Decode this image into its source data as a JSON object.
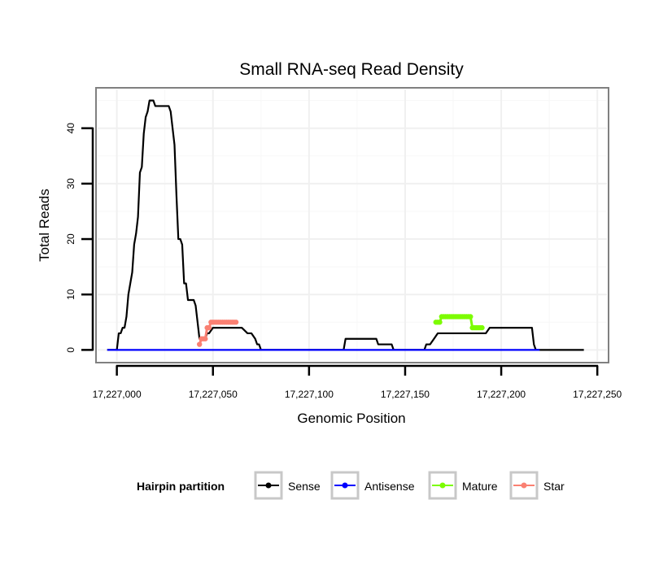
{
  "chart_data": {
    "type": "line",
    "title": "Small RNA-seq Read Density",
    "xlabel": "Genomic Position",
    "ylabel": "Total Reads",
    "xlim": [
      17226990,
      17227255
    ],
    "ylim": [
      -2,
      47
    ],
    "x_ticks": [
      17227000,
      17227050,
      17227100,
      17227150,
      17227200,
      17227250
    ],
    "x_tick_labels": [
      "17,227,000",
      "17,227,050",
      "17,227,100",
      "17,227,150",
      "17,227,200",
      "17,227,250"
    ],
    "y_ticks": [
      0,
      10,
      20,
      30,
      40
    ],
    "y_tick_labels": [
      "0",
      "10",
      "20",
      "30",
      "40"
    ],
    "grid": true,
    "legend": {
      "title": "Hairpin partition",
      "placement": "bottom",
      "entries": [
        {
          "name": "Sense",
          "color": "#000000"
        },
        {
          "name": "Antisense",
          "color": "#0000ff"
        },
        {
          "name": "Mature",
          "color": "#7cfc00"
        },
        {
          "name": "Star",
          "color": "#fa8072"
        }
      ]
    },
    "series": [
      {
        "name": "Sense",
        "color": "#000000",
        "style": "line",
        "x": [
          17226995,
          17227000,
          17227001,
          17227002,
          17227003,
          17227004,
          17227005,
          17227006,
          17227007,
          17227008,
          17227009,
          17227010,
          17227011,
          17227012,
          17227013,
          17227014,
          17227015,
          17227016,
          17227017,
          17227018,
          17227019,
          17227020,
          17227021,
          17227022,
          17227023,
          17227024,
          17227025,
          17227026,
          17227027,
          17227028,
          17227029,
          17227030,
          17227031,
          17227032,
          17227033,
          17227034,
          17227035,
          17227036,
          17227037,
          17227038,
          17227039,
          17227040,
          17227041,
          17227042,
          17227043,
          17227044,
          17227045,
          17227046,
          17227047,
          17227048,
          17227050,
          17227060,
          17227062,
          17227065,
          17227068,
          17227070,
          17227072,
          17227073,
          17227074,
          17227075,
          17227118,
          17227119,
          17227120,
          17227135,
          17227136,
          17227143,
          17227144,
          17227159,
          17227160,
          17227161,
          17227162,
          17227163,
          17227165,
          17227167,
          17227188,
          17227189,
          17227190,
          17227191,
          17227192,
          17227194,
          17227215,
          17227216,
          17227217,
          17227218,
          17227219,
          17227243
        ],
        "y": [
          0,
          0,
          3,
          3,
          4,
          4,
          6,
          10,
          12,
          14,
          19,
          21,
          24,
          32,
          33,
          39,
          42,
          43,
          45,
          45,
          45,
          44,
          44,
          44,
          44,
          44,
          44,
          44,
          44,
          43,
          40,
          37,
          28,
          20,
          20,
          19,
          12,
          12,
          9,
          9,
          9,
          9,
          8,
          5,
          2,
          2,
          2,
          2,
          3,
          3,
          4,
          4,
          4,
          4,
          3,
          3,
          2,
          1,
          1,
          0,
          0,
          2,
          2,
          2,
          1,
          1,
          0,
          0,
          0,
          1,
          1,
          1,
          2,
          3,
          3,
          3,
          3,
          3,
          3,
          4,
          4,
          4,
          1,
          0,
          0,
          0
        ]
      },
      {
        "name": "Antisense",
        "color": "#0000ff",
        "style": "line",
        "x": [
          17226995,
          17227220
        ],
        "y": [
          0,
          0
        ]
      },
      {
        "name": "Mature",
        "color": "#7cfc00",
        "style": "line-points",
        "x": [
          17227166,
          17227167,
          17227168,
          17227169,
          17227170,
          17227171,
          17227172,
          17227173,
          17227174,
          17227175,
          17227176,
          17227177,
          17227178,
          17227179,
          17227180,
          17227181,
          17227182,
          17227183,
          17227184,
          17227185,
          17227186,
          17227187,
          17227188,
          17227189,
          17227190
        ],
        "y": [
          5,
          5,
          5,
          6,
          6,
          6,
          6,
          6,
          6,
          6,
          6,
          6,
          6,
          6,
          6,
          6,
          6,
          6,
          6,
          4,
          4,
          4,
          4,
          4,
          4
        ]
      },
      {
        "name": "Star",
        "color": "#fa8072",
        "style": "line-points",
        "x": [
          17227043,
          17227044,
          17227045,
          17227046,
          17227047,
          17227048,
          17227049,
          17227050,
          17227051,
          17227052,
          17227053,
          17227054,
          17227055,
          17227056,
          17227057,
          17227058,
          17227059,
          17227060,
          17227061,
          17227062
        ],
        "y": [
          1,
          2,
          2,
          2,
          4,
          4,
          5,
          5,
          5,
          5,
          5,
          5,
          5,
          5,
          5,
          5,
          5,
          5,
          5,
          5
        ]
      }
    ]
  }
}
